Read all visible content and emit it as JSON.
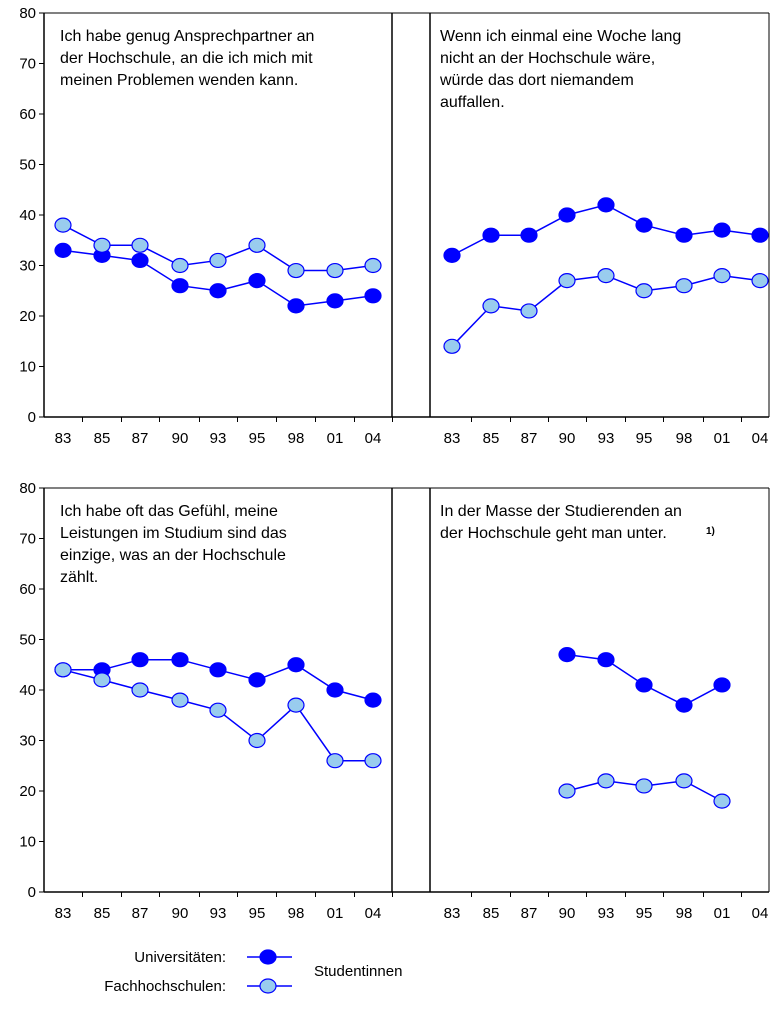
{
  "chart_data": {
    "type": "line",
    "colors": {
      "universitaeten": "#0000ff",
      "fachhochschulen": "#99ccee",
      "line": "#0000ff"
    },
    "y_axis": {
      "ylim": [
        0,
        80
      ],
      "ticks": [
        "0",
        "10",
        "20",
        "30",
        "40",
        "50",
        "60",
        "70",
        "80"
      ]
    },
    "x_categories": [
      "83",
      "85",
      "87",
      "90",
      "93",
      "95",
      "98",
      "01",
      "04"
    ],
    "panels": [
      {
        "annotation": [
          "Ich habe genug Ansprechpartner an",
          "der Hochschule, an die ich mich mit",
          "meinen Problemen wenden kann."
        ],
        "series": [
          {
            "group": "universitaeten",
            "values": [
              33,
              32,
              31,
              26,
              25,
              27,
              22,
              23,
              24
            ]
          },
          {
            "group": "fachhochschulen",
            "values": [
              38,
              34,
              34,
              30,
              31,
              34,
              29,
              29,
              30
            ]
          }
        ]
      },
      {
        "annotation": [
          "Wenn ich einmal eine Woche lang",
          "nicht an der Hochschule wäre,",
          "würde das dort niemandem",
          "auffallen."
        ],
        "series": [
          {
            "group": "universitaeten",
            "values": [
              32,
              36,
              36,
              40,
              42,
              38,
              36,
              37,
              36
            ]
          },
          {
            "group": "fachhochschulen",
            "values": [
              14,
              22,
              21,
              27,
              28,
              25,
              26,
              28,
              27
            ]
          }
        ]
      },
      {
        "annotation": [
          "Ich habe oft das Gefühl, meine",
          "Leistungen im Studium sind das",
          "einzige, was an der Hochschule",
          "zählt."
        ],
        "series": [
          {
            "group": "universitaeten",
            "values": [
              44,
              44,
              46,
              46,
              44,
              42,
              45,
              40,
              38
            ]
          },
          {
            "group": "fachhochschulen",
            "values": [
              44,
              42,
              40,
              38,
              36,
              30,
              37,
              26,
              26
            ]
          }
        ]
      },
      {
        "annotation": [
          "In der Masse der Studierenden an",
          "der Hochschule geht man unter."
        ],
        "footnote": "1)",
        "series": [
          {
            "group": "universitaeten",
            "values": [
              null,
              null,
              null,
              47,
              46,
              41,
              37,
              41,
              null
            ]
          },
          {
            "group": "fachhochschulen",
            "values": [
              null,
              null,
              null,
              20,
              22,
              21,
              22,
              18,
              null
            ]
          }
        ]
      }
    ],
    "legend": {
      "universitaeten": "Universitäten:",
      "fachhochschulen": "Fachhochschulen:",
      "group": "Studentinnen"
    }
  }
}
